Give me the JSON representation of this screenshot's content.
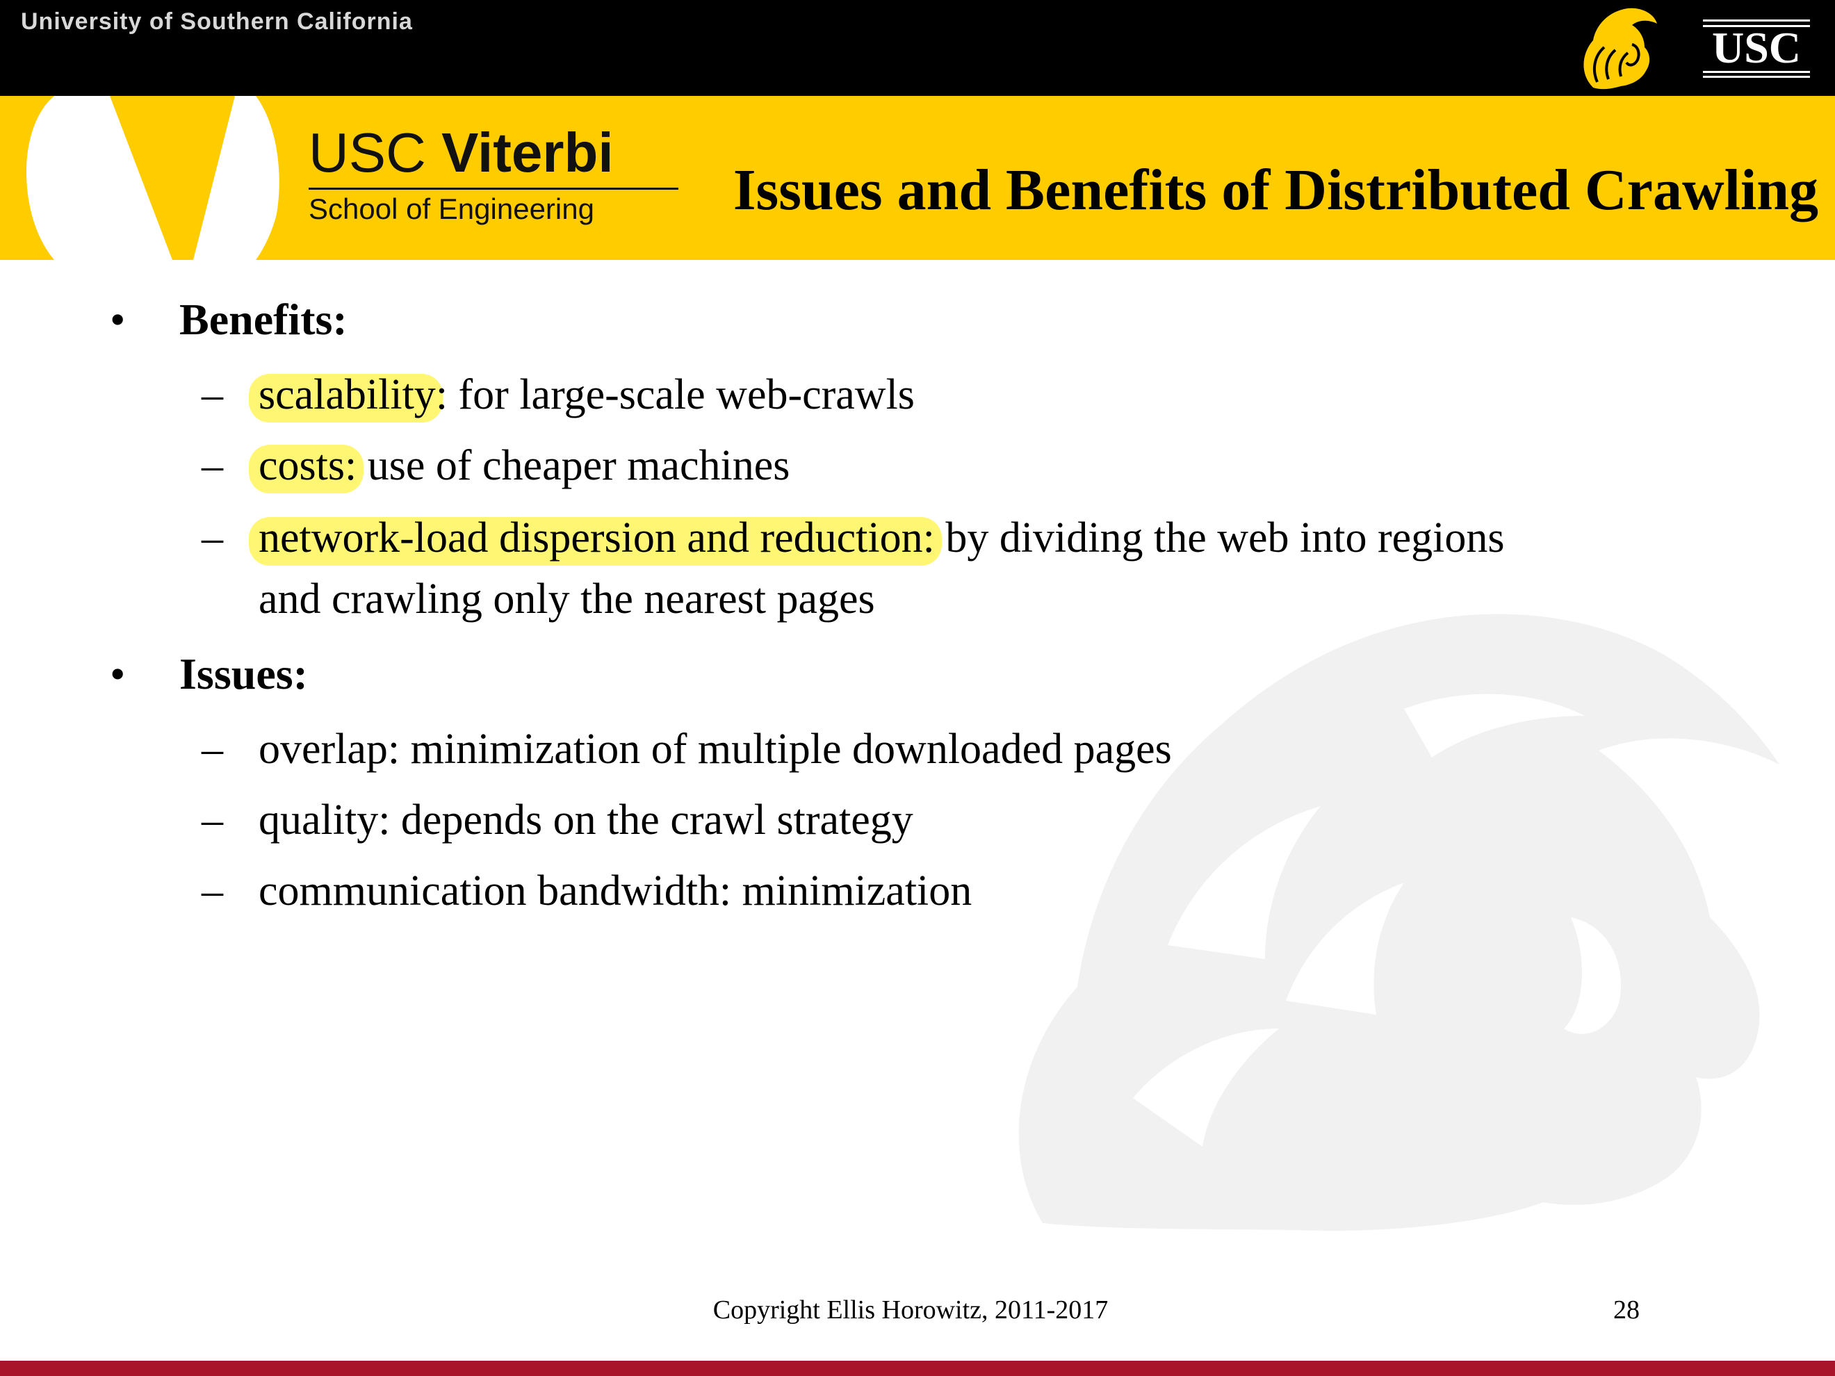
{
  "header": {
    "university": "University of Southern California",
    "logo_text": "USC"
  },
  "banner": {
    "viterbi_usc": "USC",
    "viterbi_name": "Viterbi",
    "viterbi_school": "School of Engineering",
    "title": "Issues and Benefits of Distributed Crawling"
  },
  "content": {
    "sections": [
      {
        "heading": "Benefits:",
        "items": [
          {
            "highlight": "scalability",
            "text": ": for large-scale web-crawls"
          },
          {
            "highlight": "costs:",
            "text": " use of cheaper machines"
          },
          {
            "highlight": "network-load dispersion and reduction:",
            "text": " by dividing the web into regions",
            "continuation": "and crawling only the nearest pages"
          }
        ]
      },
      {
        "heading": "Issues:",
        "items": [
          {
            "text": "overlap: minimization of multiple downloaded pages"
          },
          {
            "text": "quality: depends on the crawl strategy"
          },
          {
            "text": "communication bandwidth: minimization"
          }
        ]
      }
    ],
    "bullet_symbol": "•",
    "dash_symbol": "–"
  },
  "footer": {
    "copyright": "Copyright Ellis Horowitz, 2011-2017",
    "page_number": "28"
  },
  "colors": {
    "banner": "#ffcc00",
    "topbar": "#000000",
    "bottom_bar": "#a8152a",
    "highlighter": "#fff55a"
  }
}
